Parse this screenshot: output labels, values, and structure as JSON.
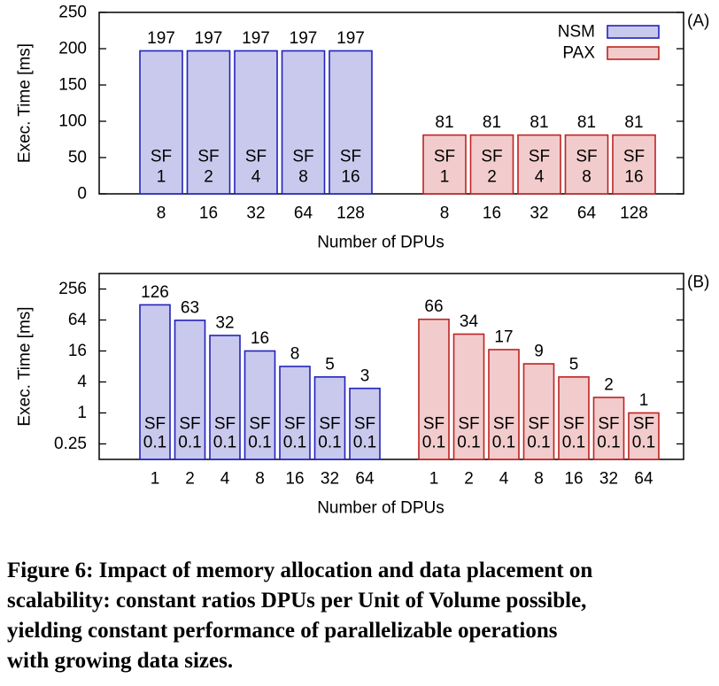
{
  "caption": {
    "lines": [
      "Figure 6: Impact of memory allocation and data placement on",
      "scalability: constant ratios DPUs per Unit of Volume possible,",
      "yielding constant performance of parallelizable operations",
      "with growing data sizes."
    ]
  },
  "chart_data": [
    {
      "type": "bar",
      "panel": "(A)",
      "ylabel": "Exec. Time [ms]",
      "xlabel": "Number of DPUs",
      "ylim": [
        0,
        250
      ],
      "yticks": [
        "0",
        "50",
        "100",
        "150",
        "200",
        "250"
      ],
      "grid": false,
      "legend": {
        "placement": "top-right",
        "entries": [
          "NSM",
          "PAX"
        ]
      },
      "groups": [
        {
          "name": "NSM",
          "categories": [
            "8",
            "16",
            "32",
            "64",
            "128"
          ],
          "values": [
            197,
            197,
            197,
            197,
            197
          ],
          "value_labels": [
            "197",
            "197",
            "197",
            "197",
            "197"
          ],
          "inner_labels": [
            [
              "SF",
              "1"
            ],
            [
              "SF",
              "2"
            ],
            [
              "SF",
              "4"
            ],
            [
              "SF",
              "8"
            ],
            [
              "SF",
              "16"
            ]
          ],
          "fill": "#c9c9ee",
          "stroke": "#2222bb"
        },
        {
          "name": "PAX",
          "categories": [
            "8",
            "16",
            "32",
            "64",
            "128"
          ],
          "values": [
            81,
            81,
            81,
            81,
            81
          ],
          "value_labels": [
            "81",
            "81",
            "81",
            "81",
            "81"
          ],
          "inner_labels": [
            [
              "SF",
              "1"
            ],
            [
              "SF",
              "2"
            ],
            [
              "SF",
              "4"
            ],
            [
              "SF",
              "8"
            ],
            [
              "SF",
              "16"
            ]
          ],
          "fill": "#f2cccc",
          "stroke": "#c02222"
        }
      ]
    },
    {
      "type": "bar",
      "panel": "(B)",
      "ylabel": "Exec. Time [ms]",
      "xlabel": "Number of DPUs",
      "yscale": "log",
      "ylim": [
        0.125,
        512
      ],
      "yticks": [
        "256",
        "64",
        "16",
        "4",
        "1",
        "0.25"
      ],
      "grid": false,
      "groups": [
        {
          "name": "NSM",
          "categories": [
            "1",
            "2",
            "4",
            "8",
            "16",
            "32",
            "64"
          ],
          "values": [
            126,
            63,
            32,
            16,
            8,
            5,
            3
          ],
          "value_labels": [
            "126",
            "63",
            "32",
            "16",
            "8",
            "5",
            "3"
          ],
          "inner_labels": [
            [
              "SF",
              "0.1"
            ],
            [
              "SF",
              "0.1"
            ],
            [
              "SF",
              "0.1"
            ],
            [
              "SF",
              "0.1"
            ],
            [
              "SF",
              "0.1"
            ],
            [
              "SF",
              "0.1"
            ],
            [
              "SF",
              "0.1"
            ]
          ],
          "fill": "#c9c9ee",
          "stroke": "#2222bb"
        },
        {
          "name": "PAX",
          "categories": [
            "1",
            "2",
            "4",
            "8",
            "16",
            "32",
            "64"
          ],
          "values": [
            66,
            34,
            17,
            9,
            5,
            2,
            1
          ],
          "value_labels": [
            "66",
            "34",
            "17",
            "9",
            "5",
            "2",
            "1"
          ],
          "inner_labels": [
            [
              "SF",
              "0.1"
            ],
            [
              "SF",
              "0.1"
            ],
            [
              "SF",
              "0.1"
            ],
            [
              "SF",
              "0.1"
            ],
            [
              "SF",
              "0.1"
            ],
            [
              "SF",
              "0.1"
            ],
            [
              "SF",
              "0.1"
            ]
          ],
          "fill": "#f2cccc",
          "stroke": "#c02222"
        }
      ]
    }
  ]
}
